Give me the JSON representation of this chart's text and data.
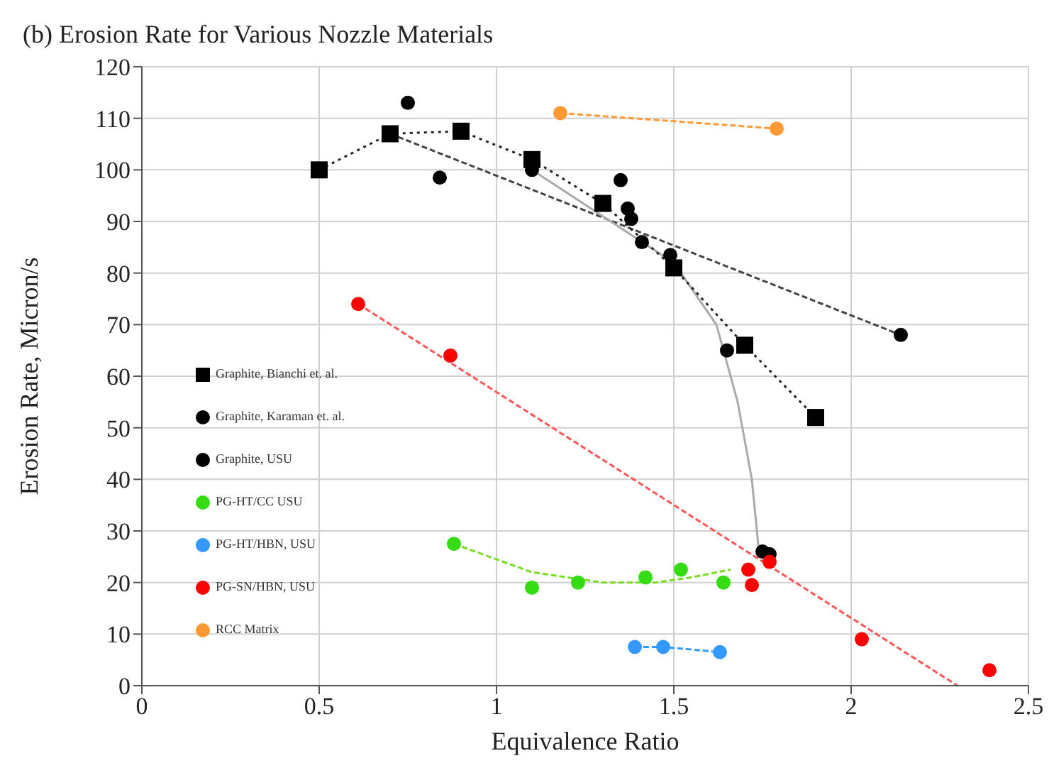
{
  "chart_data": {
    "type": "scatter",
    "title": "(b) Erosion Rate for Various Nozzle Materials",
    "xlabel": "Equivalence Ratio",
    "ylabel": "Erosion Rate, Micron/s",
    "xlim": [
      0,
      2.5
    ],
    "xticks": [
      0,
      0.5,
      1,
      1.5,
      2,
      2.5
    ],
    "ylim": [
      0,
      120
    ],
    "yticks": [
      0,
      10,
      20,
      30,
      40,
      50,
      60,
      70,
      80,
      90,
      100,
      110,
      120
    ],
    "grid": true,
    "legend": "bottom left",
    "series": [
      {
        "name": "Graphite, USU",
        "color": "#000000",
        "marker": "circle",
        "x": [
          0.75,
          0.84,
          2.14
        ],
        "values": [
          113,
          98.5,
          68
        ]
      },
      {
        "name": "Graphite, Karaman et. al.",
        "color": "#000000",
        "marker": "circle",
        "x": [
          1.1,
          1.35,
          1.37,
          1.38,
          1.41,
          1.49,
          1.65,
          1.75,
          1.77
        ],
        "values": [
          100,
          98,
          92.5,
          90.5,
          86,
          83.5,
          65,
          26,
          25.5
        ]
      },
      {
        "name": "Graphite, Bianchi et. al.",
        "color": "#000000",
        "marker": "square",
        "x": [
          0.5,
          0.7,
          0.9,
          1.1,
          1.3,
          1.5,
          1.7,
          1.9
        ],
        "values": [
          100,
          107,
          107.5,
          102,
          93.5,
          81,
          66,
          52
        ]
      },
      {
        "name": "PG-SN/HBN, USU",
        "color": "#ff0000",
        "marker": "circle",
        "x": [
          0.61,
          0.87,
          1.71,
          1.72,
          1.77,
          2.03,
          2.39
        ],
        "values": [
          74,
          64,
          22.5,
          19.5,
          24,
          9,
          3
        ]
      },
      {
        "name": "PG-HT/HBN, USU",
        "color": "#3399ff",
        "marker": "circle",
        "x": [
          1.39,
          1.47,
          1.63
        ],
        "values": [
          7.5,
          7.5,
          6.5
        ]
      },
      {
        "name": "RCC Matrix",
        "color": "#ff9933",
        "marker": "circle",
        "x": [
          1.18,
          1.79
        ],
        "values": [
          111,
          108
        ]
      },
      {
        "name": "PG-HT/CC USU",
        "color": "#33dd11",
        "marker": "circle",
        "x": [
          0.88,
          1.1,
          1.23,
          1.42,
          1.52,
          1.64
        ],
        "values": [
          27.5,
          19,
          20,
          21,
          22.5,
          20
        ]
      },
      {
        "type": "line",
        "color": "#444444",
        "marker": "none",
        "line_style": "dashed",
        "x": [
          0.7,
          2.14
        ],
        "values": [
          107,
          68
        ]
      },
      {
        "type": "line",
        "color": "#aaaaaa",
        "marker": "none",
        "line_style": "solid",
        "x": [
          1.1,
          1.5,
          1.62,
          1.68,
          1.72,
          1.74
        ],
        "values": [
          100,
          82,
          70,
          55,
          40,
          26
        ]
      },
      {
        "type": "line",
        "color": "#222222",
        "marker": "none",
        "line_style": "dotted",
        "x": [
          0.5,
          0.7,
          0.9,
          1.1,
          1.3,
          1.5,
          1.7,
          1.9
        ],
        "values": [
          100,
          107,
          107.5,
          102,
          93.5,
          81,
          66,
          52
        ]
      },
      {
        "type": "line",
        "color": "#ff5555",
        "marker": "none",
        "line_style": "dashed",
        "x": [
          0.61,
          2.3
        ],
        "values": [
          74,
          0
        ]
      },
      {
        "type": "line",
        "color": "#3399ff",
        "marker": "none",
        "line_style": "dashed",
        "x": [
          1.39,
          1.47,
          1.63
        ],
        "values": [
          7.5,
          7.5,
          6.5
        ]
      },
      {
        "type": "line",
        "color": "#ff9933",
        "marker": "none",
        "line_style": "dashed",
        "x": [
          1.18,
          1.79
        ],
        "values": [
          111,
          108
        ]
      },
      {
        "type": "line",
        "color": "#77dd22",
        "marker": "none",
        "line_style": "dashed",
        "x": [
          0.88,
          1.1,
          1.3,
          1.45,
          1.55,
          1.66
        ],
        "values": [
          27.5,
          22,
          20,
          20,
          21,
          22.5
        ]
      }
    ]
  }
}
